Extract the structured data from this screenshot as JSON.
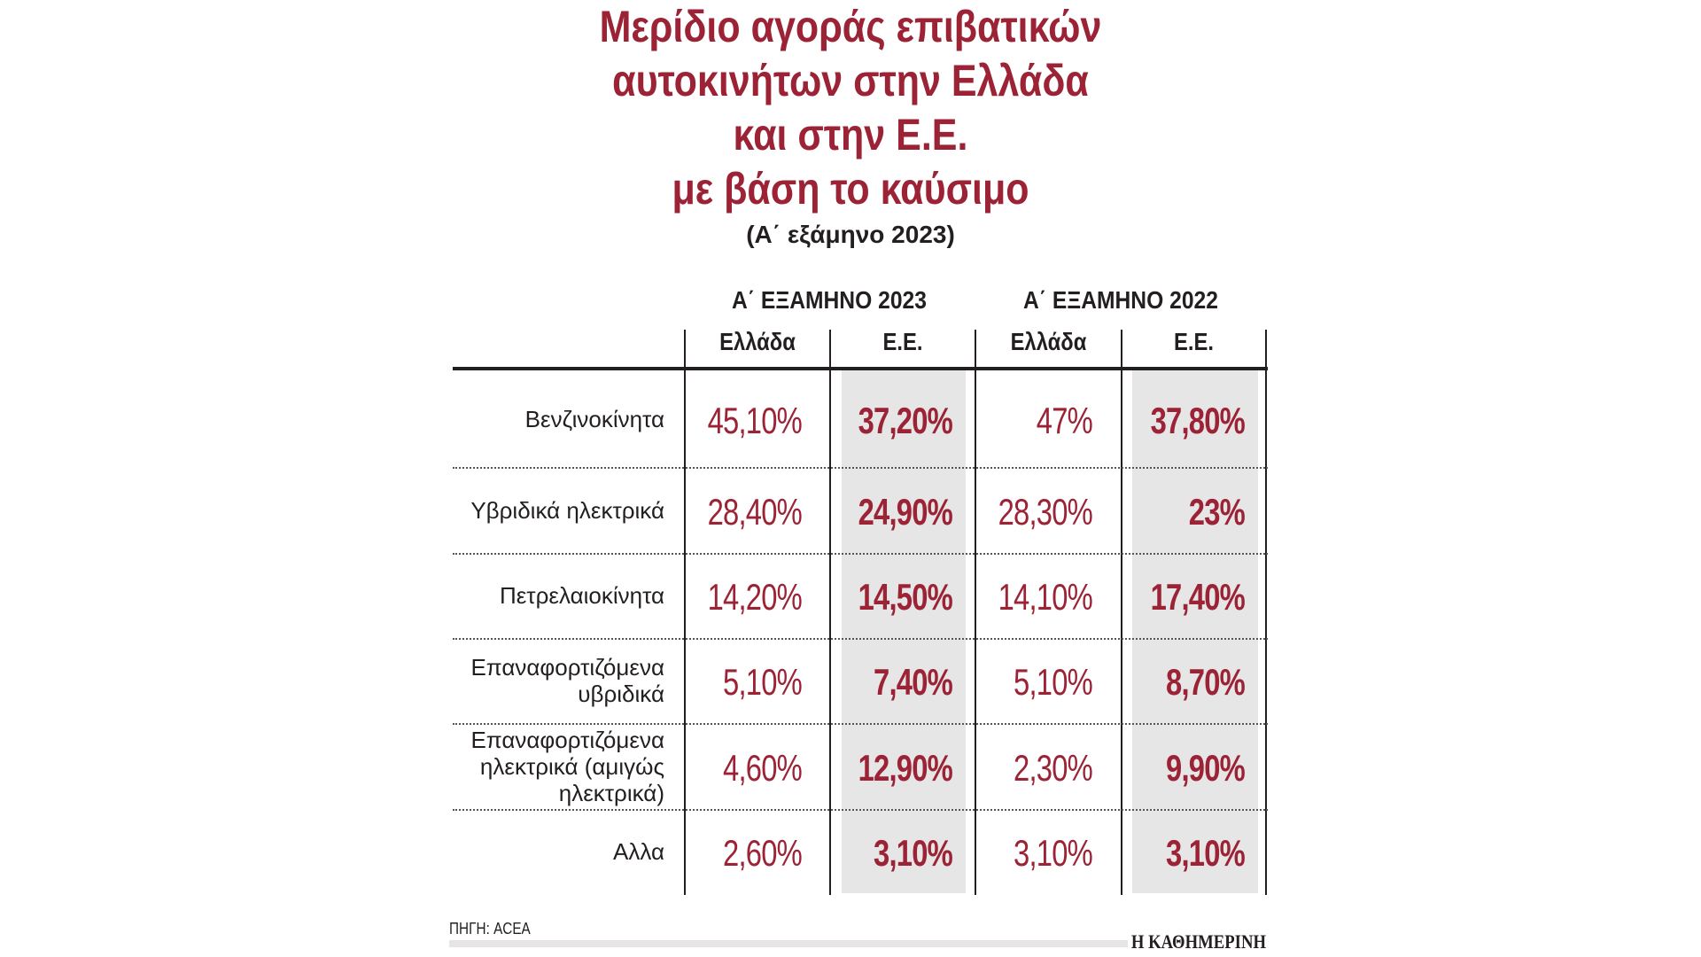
{
  "chart_data": {
    "type": "table",
    "title": [
      "Μερίδιο αγοράς επιβατικών",
      "αυτοκινήτων στην Ελλάδα",
      "και στην Ε.Ε.",
      "με βάση το καύσιμο"
    ],
    "subtitle": "(Α΄ εξάμηνο 2023)",
    "column_groups": [
      "Α΄ ΕΞΑΜΗΝΟ 2023",
      "Α΄ ΕΞΑΜΗΝΟ 2022"
    ],
    "columns": [
      "Ελλάδα",
      "Ε.Ε.",
      "Ελλάδα",
      "Ε.Ε."
    ],
    "rows": [
      {
        "label": [
          "Βενζινοκίνητα"
        ],
        "values": [
          "45,10%",
          "37,20%",
          "47%",
          "37,80%"
        ]
      },
      {
        "label": [
          "Υβριδικά ηλεκτρικά"
        ],
        "values": [
          "28,40%",
          "24,90%",
          "28,30%",
          "23%"
        ]
      },
      {
        "label": [
          "Πετρελαιοκίνητα"
        ],
        "values": [
          "14,20%",
          "14,50%",
          "14,10%",
          "17,40%"
        ]
      },
      {
        "label": [
          "Επαναφορτιζόμενα",
          "υβριδικά"
        ],
        "values": [
          "5,10%",
          "7,40%",
          "5,10%",
          "8,70%"
        ]
      },
      {
        "label": [
          "Επαναφορτιζόμενα",
          "ηλεκτρικά (αμιγώς",
          "ηλεκτρικά)"
        ],
        "values": [
          "4,60%",
          "12,90%",
          "2,30%",
          "9,90%"
        ]
      },
      {
        "label": [
          "Αλλα"
        ],
        "values": [
          "2,60%",
          "3,10%",
          "3,10%",
          "3,10%"
        ]
      }
    ],
    "colors": {
      "accent": "#9b2335",
      "shade": "#e6e6e7"
    }
  },
  "footer": {
    "source": "ΠΗΓΗ: ACEA",
    "logo": "Η ΚΑΘΗΜΕΡΙΝΗ"
  }
}
